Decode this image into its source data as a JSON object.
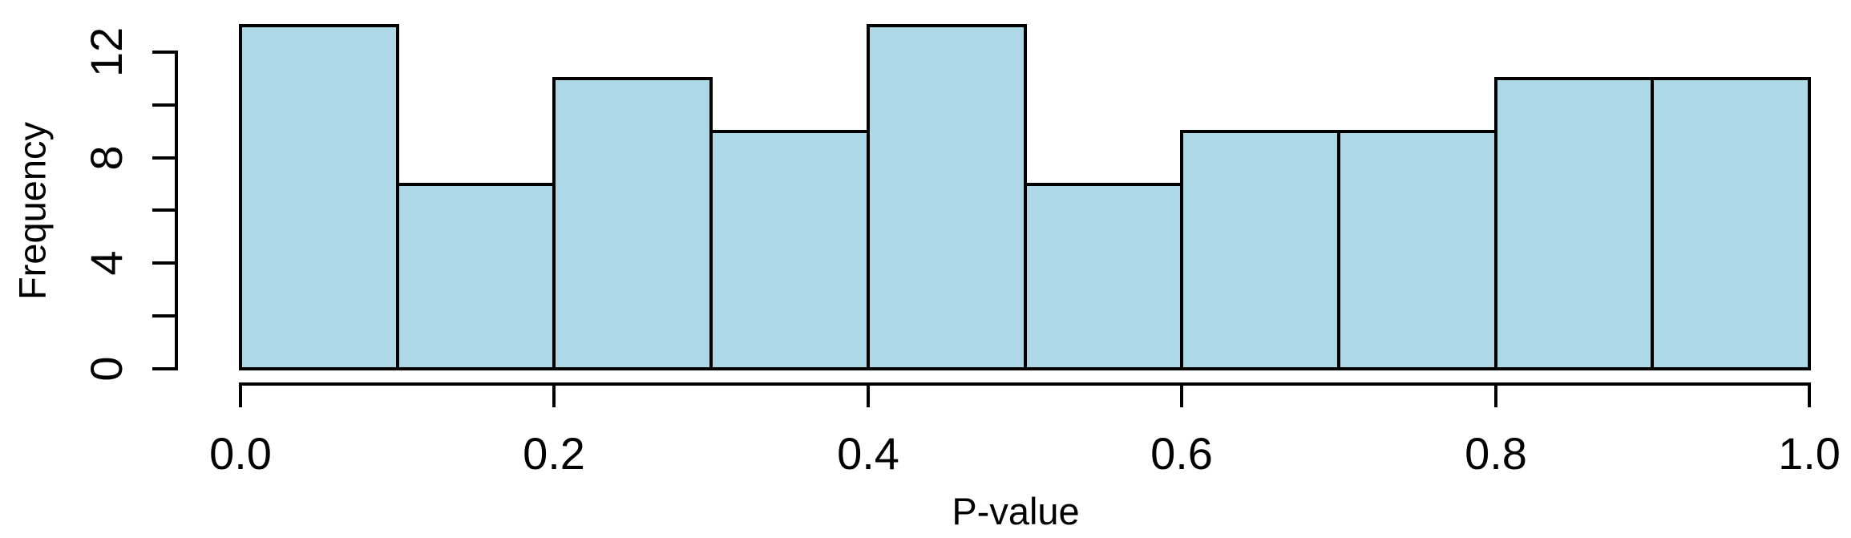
{
  "figure": {
    "background_color": "#ffffff",
    "axis_color": "#000000",
    "text_color": "#000000"
  },
  "chart_data": {
    "type": "bar",
    "subtype": "histogram",
    "title": "",
    "xlabel": "P-value",
    "ylabel": "Frequency",
    "bin_edges": [
      0.0,
      0.1,
      0.2,
      0.3,
      0.4,
      0.5,
      0.6,
      0.7,
      0.8,
      0.9,
      1.0
    ],
    "values": [
      13,
      7,
      11,
      9,
      13,
      7,
      9,
      9,
      11,
      11
    ],
    "bar_fill_color": "#ADD8E6",
    "bar_stroke_color": "#000000",
    "xlim": [
      0.0,
      1.0
    ],
    "ylim": [
      0,
      12
    ],
    "x_tick_values": [
      0.0,
      0.2,
      0.4,
      0.6,
      0.8,
      1.0
    ],
    "x_tick_labels": [
      "0.0",
      "0.2",
      "0.4",
      "0.6",
      "0.8",
      "1.0"
    ],
    "y_tick_values": [
      0,
      2,
      4,
      6,
      8,
      10,
      12
    ],
    "y_labeled_tick_values": [
      0,
      4,
      8,
      12
    ],
    "y_labeled_tick_labels": [
      "0",
      "4",
      "8",
      "12"
    ],
    "grid": false,
    "legend": null
  }
}
